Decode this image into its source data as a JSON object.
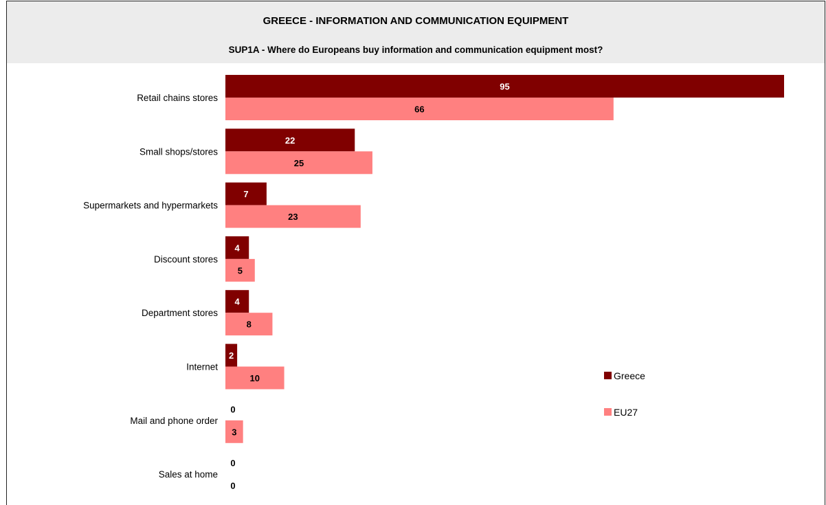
{
  "chart_data": {
    "type": "bar",
    "orientation": "horizontal",
    "title": "GREECE - INFORMATION AND COMMUNICATION EQUIPMENT",
    "subtitle": "SUP1A - Where do Europeans buy information and communication equipment most?",
    "categories": [
      "Retail chains stores",
      "Small shops/stores",
      "Supermarkets and hypermarkets",
      "Discount stores",
      "Department stores",
      "Internet",
      "Mail and phone order",
      "Sales at home"
    ],
    "series": [
      {
        "name": "Greece",
        "color": "#800000",
        "label_color": "#ffffff",
        "values": [
          95,
          22,
          7,
          4,
          4,
          2,
          0,
          0
        ]
      },
      {
        "name": "EU27",
        "color": "#ff8080",
        "label_color": "#000000",
        "values": [
          66,
          25,
          23,
          5,
          8,
          10,
          3,
          0
        ]
      }
    ],
    "xlim": [
      0,
      95
    ],
    "grid": false,
    "legend": "right"
  }
}
